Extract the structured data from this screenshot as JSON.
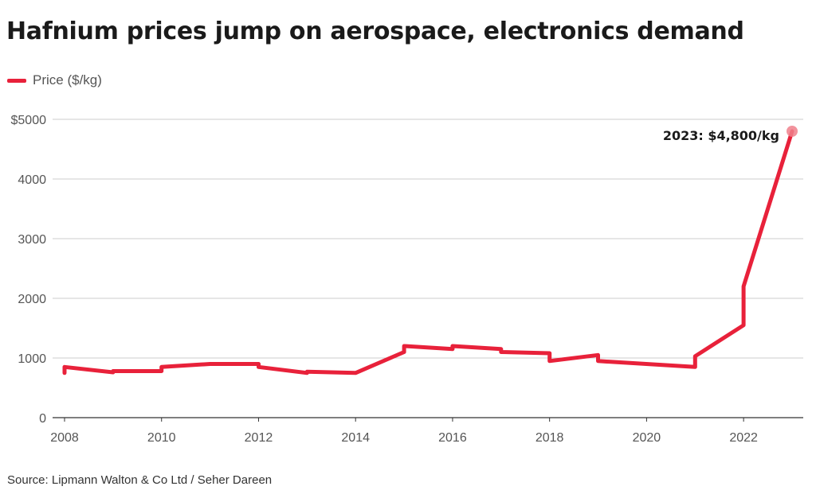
{
  "title": "Hafnium prices jump on aerospace, electronics demand",
  "source": "Source: Lipmann Walton & Co Ltd / Seher Dareen",
  "colors": {
    "series": "#e8213a",
    "endpoint": "#f0808c",
    "grid": "#cccccc",
    "axis": "#555555"
  },
  "chart_data": {
    "type": "line",
    "title": "Hafnium prices jump on aerospace, electronics demand",
    "xlabel": "",
    "ylabel": "",
    "grid": true,
    "legend_position": "top-left",
    "xlim": [
      2008,
      2023
    ],
    "ylim": [
      0,
      5000
    ],
    "x_ticks": [
      2008,
      2010,
      2012,
      2014,
      2016,
      2018,
      2020,
      2022
    ],
    "x_tick_labels": [
      "2008",
      "2010",
      "2012",
      "2014",
      "2016",
      "2018",
      "2020",
      "2022"
    ],
    "y_ticks": [
      0,
      1000,
      2000,
      3000,
      4000,
      5000
    ],
    "y_tick_labels": [
      "0",
      "1000",
      "2000",
      "3000",
      "4000",
      "$5000"
    ],
    "series": [
      {
        "name": "Price ($/kg)",
        "color": "#e8213a",
        "points": [
          [
            2008,
            750
          ],
          [
            2008,
            850
          ],
          [
            2009,
            760
          ],
          [
            2009,
            780
          ],
          [
            2010,
            780
          ],
          [
            2010,
            850
          ],
          [
            2011,
            900
          ],
          [
            2012,
            900
          ],
          [
            2012,
            850
          ],
          [
            2013,
            750
          ],
          [
            2013,
            770
          ],
          [
            2014,
            750
          ],
          [
            2015,
            1100
          ],
          [
            2015,
            1200
          ],
          [
            2016,
            1150
          ],
          [
            2016,
            1200
          ],
          [
            2017,
            1150
          ],
          [
            2017,
            1100
          ],
          [
            2018,
            1080
          ],
          [
            2018,
            950
          ],
          [
            2019,
            1050
          ],
          [
            2019,
            950
          ],
          [
            2021,
            850
          ],
          [
            2021,
            1030
          ],
          [
            2022,
            1550
          ],
          [
            2022,
            2200
          ],
          [
            2023,
            4800
          ]
        ]
      }
    ],
    "annotations": [
      {
        "x": 2023,
        "y": 4800,
        "text": "2023: $4,800/kg"
      }
    ]
  }
}
